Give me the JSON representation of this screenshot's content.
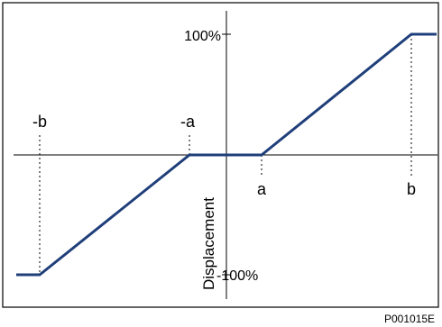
{
  "figure": {
    "y_axis_label": "Displacement",
    "y_tick_top": "100%",
    "y_tick_bottom": "-100%",
    "x_label_neg_b": "-b",
    "x_label_neg_a": "-a",
    "x_label_a": "a",
    "x_label_b": "b",
    "figure_id": "P001015E",
    "colors": {
      "curve": "#1f3f7a",
      "axis": "#000000",
      "frame": "#000000",
      "guide": "#000000"
    }
  }
}
